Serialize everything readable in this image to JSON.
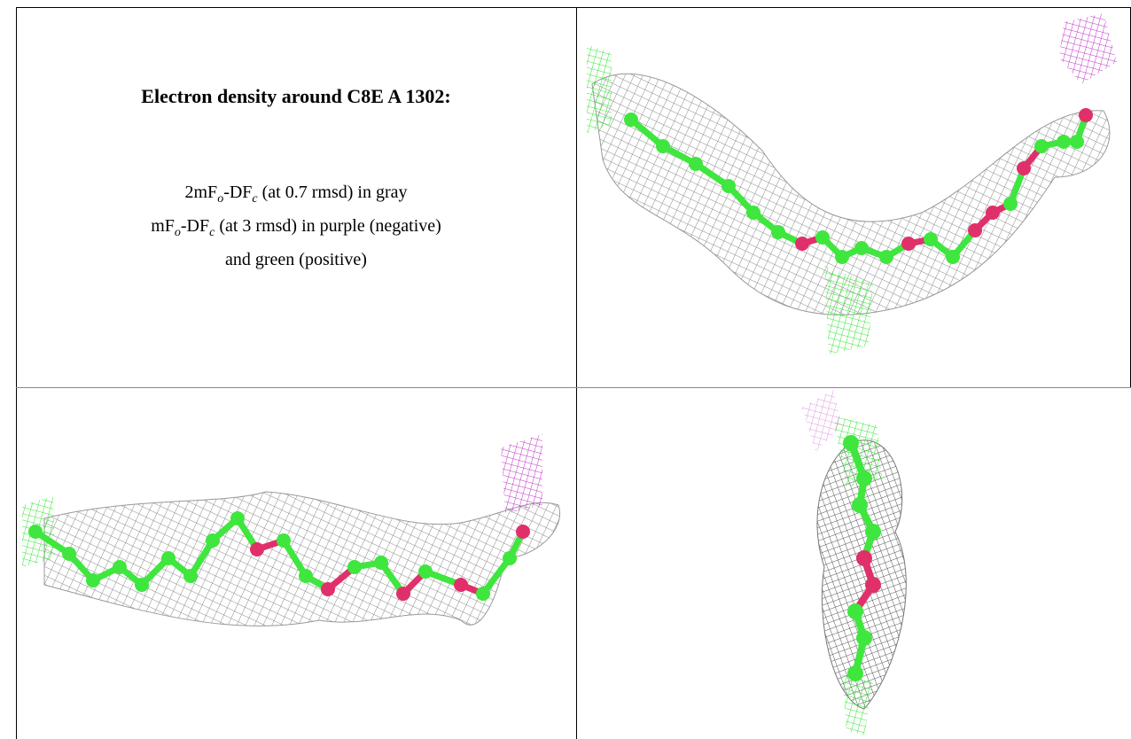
{
  "header": {
    "title": "Electron density around C8E A 1302:"
  },
  "legend": {
    "lines": [
      [
        "2mF",
        "o",
        "-DF",
        "c",
        " (at 0.7 rmsd) in gray"
      ],
      [
        "mF",
        "o",
        "-DF",
        "c",
        " (at 3 rmsd) in purple (negative)"
      ],
      [
        "and green (positive)"
      ]
    ]
  }
}
